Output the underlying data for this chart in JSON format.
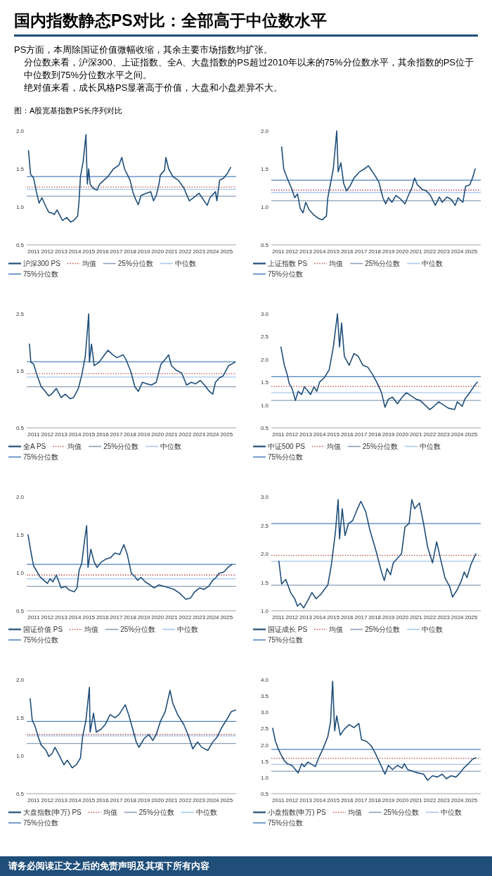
{
  "chart_data": [
    {
      "type": "other",
      "title": "国内指数静态PS对比：全部高于中位数水平",
      "annotations": [
        "PS方面，本周除国证价值微幅收缩，其余主要市场指数均扩张。",
        "分位数来看，沪深300、上证指数、全A、大盘指数的PS超过2010年以来的75%分位数水平，其余指数的PS位于中位数到75%分位数水平之间。",
        "绝对值来看，成长风格PS显著高于价值，大盘和小盘差异不大。",
        "图：A股宽基指数PS长序列对比",
        "请务必阅读正文之后的免责声明及其项下所有内容"
      ]
    },
    {
      "type": "line",
      "legend": "bottom",
      "xlim": [
        2010.5,
        2025.7
      ],
      "xticks": [
        2011,
        2012,
        2013,
        2014,
        2015,
        2016,
        2017,
        2018,
        2019,
        2020,
        2021,
        2022,
        2023,
        2024,
        2025
      ],
      "ylim": [
        0.5,
        2
      ],
      "yticks": [
        0.5,
        {
          "value": 1,
          "label": "1.0"
        },
        1.5,
        {
          "value": 2,
          "label": "2.0"
        }
      ],
      "x": [
        2010.63,
        2010.78,
        2011.0,
        2011.2,
        2011.4,
        2011.6,
        2011.9,
        2012.1,
        2012.3,
        2012.5,
        2012.7,
        2013.1,
        2013.4,
        2013.7,
        2013.9,
        2014.2,
        2014.3,
        2014.4,
        2014.6,
        2014.8,
        2014.85,
        2014.9,
        2015.0,
        2015.1,
        2015.3,
        2015.6,
        2015.8,
        2016.1,
        2016.4,
        2016.8,
        2017.2,
        2017.4,
        2017.6,
        2018.0,
        2018.2,
        2018.4,
        2018.6,
        2018.8,
        2019.2,
        2019.5,
        2019.7,
        2019.9,
        2020.1,
        2020.2,
        2020.5,
        2020.6,
        2020.8,
        2021.1,
        2021.5,
        2021.9,
        2022.3,
        2022.6,
        2023.0,
        2023.3,
        2023.6,
        2023.8,
        2024.2,
        2024.3,
        2024.5,
        2024.8,
        2025.1,
        2025.3
      ],
      "series": [
        {
          "name": "沪深300 PS",
          "color": "#1f4e79",
          "values": [
            1.74,
            1.43,
            1.38,
            1.2,
            1.05,
            1.12,
            1.0,
            0.93,
            0.92,
            0.9,
            0.96,
            0.82,
            0.86,
            0.8,
            0.82,
            0.88,
            1.08,
            1.4,
            1.6,
            1.95,
            1.6,
            1.3,
            1.5,
            1.3,
            1.25,
            1.22,
            1.3,
            1.35,
            1.4,
            1.5,
            1.55,
            1.65,
            1.5,
            1.35,
            1.2,
            1.1,
            1.03,
            1.15,
            1.18,
            1.2,
            1.08,
            1.15,
            1.3,
            1.42,
            1.48,
            1.65,
            1.5,
            1.4,
            1.35,
            1.25,
            1.08,
            1.12,
            1.18,
            1.1,
            1.02,
            1.12,
            1.2,
            1.08,
            1.35,
            1.38,
            1.45,
            1.52
          ]
        }
      ],
      "ref_lines": [
        {
          "axis": "y",
          "value": 1.26,
          "label": "均值",
          "color": "#c0504d",
          "line_style": "dotted"
        },
        {
          "axis": "y",
          "value": 1.14,
          "label": "25%分位数",
          "color": "#8c9fb8",
          "line_style": "solid"
        },
        {
          "axis": "y",
          "value": 1.23,
          "label": "中位数",
          "color": "#a6c8ec",
          "line_style": "solid"
        },
        {
          "axis": "y",
          "value": 1.4,
          "label": "75%分位数",
          "color": "#4f81bd",
          "line_style": "solid"
        }
      ]
    },
    {
      "type": "line",
      "legend": "bottom",
      "xlim": [
        2010.5,
        2025.7
      ],
      "xticks": [
        2011,
        2012,
        2013,
        2014,
        2015,
        2016,
        2017,
        2018,
        2019,
        2020,
        2021,
        2022,
        2023,
        2024,
        2025
      ],
      "ylim": [
        0.5,
        2
      ],
      "yticks": [
        0.5,
        {
          "value": 1,
          "label": "1.0"
        },
        1.5,
        {
          "value": 2,
          "label": "2.0"
        }
      ],
      "x": [
        2011.25,
        2011.4,
        2011.65,
        2012.0,
        2012.2,
        2012.4,
        2012.6,
        2012.8,
        2013.0,
        2013.25,
        2013.55,
        2013.9,
        2014.2,
        2014.5,
        2014.6,
        2014.8,
        2015.0,
        2015.25,
        2015.35,
        2015.55,
        2015.75,
        2015.95,
        2016.2,
        2016.5,
        2016.9,
        2017.25,
        2017.55,
        2018.0,
        2018.3,
        2018.6,
        2018.8,
        2019.0,
        2019.25,
        2019.55,
        2019.9,
        2020.2,
        2020.4,
        2020.7,
        2020.9,
        2021.1,
        2021.45,
        2021.75,
        2022.05,
        2022.4,
        2022.7,
        2022.9,
        2023.25,
        2023.55,
        2023.85,
        2024.05,
        2024.4,
        2024.6,
        2024.9,
        2025.1,
        2025.3
      ],
      "series": [
        {
          "name": "上证指数 PS",
          "color": "#1f4e79",
          "values": [
            1.79,
            1.5,
            1.38,
            1.23,
            1.12,
            1.17,
            0.98,
            0.92,
            1.06,
            0.96,
            0.9,
            0.85,
            0.83,
            0.88,
            1.12,
            1.31,
            1.5,
            2.0,
            1.46,
            1.58,
            1.31,
            1.21,
            1.27,
            1.38,
            1.46,
            1.5,
            1.54,
            1.42,
            1.33,
            1.12,
            1.04,
            1.12,
            1.06,
            1.15,
            1.1,
            1.04,
            1.13,
            1.25,
            1.38,
            1.29,
            1.23,
            1.21,
            1.15,
            1.02,
            1.13,
            1.06,
            1.13,
            1.1,
            1.02,
            1.12,
            1.06,
            1.27,
            1.29,
            1.38,
            1.5
          ]
        }
      ],
      "ref_lines": [
        {
          "axis": "y",
          "value": 1.22,
          "label": "均值",
          "color": "#c0504d",
          "line_style": "dotted"
        },
        {
          "axis": "y",
          "value": 1.08,
          "label": "25%分位数",
          "color": "#8c9fb8",
          "line_style": "solid"
        },
        {
          "axis": "y",
          "value": 1.19,
          "label": "中位数",
          "color": "#a6c8ec",
          "line_style": "solid"
        },
        {
          "axis": "y",
          "value": 1.35,
          "label": "75%分位数",
          "color": "#4f81bd",
          "line_style": "solid"
        }
      ]
    },
    {
      "type": "line",
      "legend": "bottom",
      "xlim": [
        2010.5,
        2025.7
      ],
      "xticks": [
        2011,
        2012,
        2013,
        2014,
        2015,
        2016,
        2017,
        2018,
        2019,
        2020,
        2021,
        2022,
        2023,
        2024,
        2025
      ],
      "ylim": [
        0.5,
        2.5
      ],
      "yticks": [
        0.5,
        1.5,
        2.5
      ],
      "x": [
        2010.7,
        2010.8,
        2011.0,
        2011.2,
        2011.55,
        2011.75,
        2012.1,
        2012.3,
        2012.65,
        2013.0,
        2013.3,
        2013.65,
        2013.9,
        2014.25,
        2014.5,
        2014.75,
        2015.0,
        2015.05,
        2015.2,
        2015.4,
        2015.75,
        2016.05,
        2016.4,
        2016.75,
        2017.05,
        2017.5,
        2017.7,
        2018.05,
        2018.35,
        2018.6,
        2018.9,
        2019.25,
        2019.55,
        2019.9,
        2020.1,
        2020.25,
        2020.55,
        2020.8,
        2021.0,
        2021.35,
        2021.75,
        2022.1,
        2022.45,
        2022.75,
        2023.1,
        2023.4,
        2023.75,
        2024.0,
        2024.2,
        2024.5,
        2024.75,
        2025.15,
        2025.6
      ],
      "series": [
        {
          "name": "全A PS",
          "color": "#1f4e79",
          "values": [
            1.97,
            1.65,
            1.62,
            1.46,
            1.22,
            1.17,
            1.06,
            1.09,
            1.19,
            1.03,
            1.09,
            1.01,
            1.03,
            1.19,
            1.43,
            1.75,
            2.5,
            1.65,
            1.97,
            1.59,
            1.65,
            1.75,
            1.86,
            1.78,
            1.73,
            1.78,
            1.7,
            1.49,
            1.22,
            1.14,
            1.3,
            1.27,
            1.25,
            1.3,
            1.49,
            1.62,
            1.7,
            1.78,
            1.59,
            1.51,
            1.46,
            1.25,
            1.3,
            1.27,
            1.33,
            1.25,
            1.14,
            1.09,
            1.3,
            1.38,
            1.41,
            1.59,
            1.65
          ]
        }
      ],
      "ref_lines": [
        {
          "axis": "y",
          "value": 1.45,
          "label": "均值",
          "color": "#c0504d",
          "line_style": "dotted"
        },
        {
          "axis": "y",
          "value": 1.22,
          "label": "25%分位数",
          "color": "#8c9fb8",
          "line_style": "solid"
        },
        {
          "axis": "y",
          "value": 1.39,
          "label": "中位数",
          "color": "#a6c8ec",
          "line_style": "solid"
        },
        {
          "axis": "y",
          "value": 1.66,
          "label": "75%分位数",
          "color": "#4f81bd",
          "line_style": "solid"
        }
      ]
    },
    {
      "type": "line",
      "legend": "bottom",
      "xlim": [
        2010.5,
        2025.7
      ],
      "xticks": [
        2011,
        2012,
        2013,
        2014,
        2015,
        2016,
        2017,
        2018,
        2019,
        2020,
        2021,
        2022,
        2023,
        2024,
        2025
      ],
      "ylim": [
        0.5,
        3
      ],
      "yticks": [
        0.5,
        {
          "value": 1,
          "label": "1.0"
        },
        1.5,
        {
          "value": 2,
          "label": "2.0"
        },
        2.5,
        {
          "value": 3,
          "label": "3.0"
        }
      ],
      "x": [
        2011.2,
        2011.45,
        2011.65,
        2011.8,
        2012.0,
        2012.25,
        2012.45,
        2012.7,
        2012.9,
        2013.1,
        2013.35,
        2013.6,
        2013.8,
        2014.0,
        2014.35,
        2014.7,
        2015.0,
        2015.3,
        2015.45,
        2015.6,
        2015.8,
        2016.15,
        2016.5,
        2016.8,
        2017.15,
        2017.5,
        2017.85,
        2018.2,
        2018.5,
        2018.75,
        2019.0,
        2019.3,
        2019.65,
        2020.0,
        2020.3,
        2020.65,
        2021.0,
        2021.3,
        2021.65,
        2022.0,
        2022.3,
        2022.65,
        2023.0,
        2023.35,
        2023.8,
        2024.0,
        2024.35,
        2024.55,
        2024.9,
        2025.25,
        2025.45
      ],
      "series": [
        {
          "name": "中证500 PS",
          "color": "#1f4e79",
          "values": [
            2.27,
            1.87,
            1.67,
            1.47,
            1.37,
            1.1,
            1.3,
            1.23,
            1.4,
            1.33,
            1.23,
            1.4,
            1.3,
            1.5,
            1.6,
            1.77,
            2.27,
            3.0,
            2.27,
            2.8,
            2.07,
            1.87,
            2.13,
            2.07,
            1.87,
            1.83,
            1.67,
            1.47,
            1.27,
            0.95,
            1.13,
            1.17,
            1.03,
            1.17,
            1.27,
            1.2,
            1.13,
            1.1,
            1.0,
            0.9,
            0.97,
            1.07,
            1.0,
            0.93,
            0.9,
            1.07,
            0.97,
            1.13,
            1.27,
            1.43,
            1.5
          ]
        }
      ],
      "ref_lines": [
        {
          "axis": "y",
          "value": 1.41,
          "label": "均值",
          "color": "#c0504d",
          "line_style": "dotted"
        },
        {
          "axis": "y",
          "value": 1.1,
          "label": "25%分位数",
          "color": "#8c9fb8",
          "line_style": "solid"
        },
        {
          "axis": "y",
          "value": 1.27,
          "label": "中位数",
          "color": "#a6c8ec",
          "line_style": "solid"
        },
        {
          "axis": "y",
          "value": 1.62,
          "label": "75%分位数",
          "color": "#4f81bd",
          "line_style": "solid"
        }
      ]
    },
    {
      "type": "line",
      "legend": "bottom",
      "xlim": [
        2010.5,
        2025.7
      ],
      "xticks": [
        2011,
        2012,
        2013,
        2014,
        2015,
        2016,
        2017,
        2018,
        2019,
        2020,
        2021,
        2022,
        2023,
        2024,
        2025
      ],
      "ylim": [
        0.5,
        2
      ],
      "yticks": [
        0.5,
        {
          "value": 1,
          "label": "1.0"
        },
        1.5,
        {
          "value": 2,
          "label": "2.0"
        }
      ],
      "x": [
        2010.6,
        2010.8,
        2011.0,
        2011.2,
        2011.45,
        2011.75,
        2012.0,
        2012.2,
        2012.4,
        2012.65,
        2013.0,
        2013.3,
        2013.6,
        2013.95,
        2014.15,
        2014.3,
        2014.5,
        2014.7,
        2014.85,
        2014.95,
        2015.15,
        2015.4,
        2015.6,
        2015.9,
        2016.25,
        2016.6,
        2016.9,
        2017.25,
        2017.55,
        2017.8,
        2018.1,
        2018.35,
        2018.55,
        2018.8,
        2019.1,
        2019.45,
        2019.75,
        2020.1,
        2020.5,
        2020.85,
        2021.2,
        2021.6,
        2022.05,
        2022.4,
        2022.7,
        2023.05,
        2023.35,
        2023.7,
        2024.0,
        2024.25,
        2024.45,
        2024.8,
        2025.1,
        2025.4
      ],
      "series": [
        {
          "name": "国证价值 PS",
          "color": "#1f4e79",
          "values": [
            1.5,
            1.28,
            1.09,
            1.03,
            0.95,
            0.9,
            0.86,
            0.92,
            0.88,
            0.97,
            0.8,
            0.82,
            0.77,
            0.75,
            0.8,
            1.03,
            1.13,
            1.43,
            1.62,
            1.07,
            1.31,
            1.14,
            1.07,
            1.14,
            1.18,
            1.2,
            1.26,
            1.24,
            1.37,
            1.24,
            0.99,
            0.95,
            0.9,
            0.94,
            0.88,
            0.84,
            0.8,
            0.84,
            0.82,
            0.8,
            0.78,
            0.73,
            0.65,
            0.67,
            0.75,
            0.8,
            0.78,
            0.82,
            0.9,
            0.94,
            0.99,
            1.01,
            1.07,
            1.11
          ]
        }
      ],
      "ref_lines": [
        {
          "axis": "y",
          "value": 0.97,
          "label": "均值",
          "color": "#c0504d",
          "line_style": "dotted"
        },
        {
          "axis": "y",
          "value": 0.82,
          "label": "25%分位数",
          "color": "#8c9fb8",
          "line_style": "solid"
        },
        {
          "axis": "y",
          "value": 0.92,
          "label": "中位数",
          "color": "#a6c8ec",
          "line_style": "solid"
        },
        {
          "axis": "y",
          "value": 1.11,
          "label": "75%分位数",
          "color": "#4f81bd",
          "line_style": "solid"
        }
      ]
    },
    {
      "type": "line",
      "legend": "bottom",
      "xlim": [
        2010.5,
        2025.7
      ],
      "xticks": [
        2011,
        2012,
        2013,
        2014,
        2015,
        2016,
        2017,
        2018,
        2019,
        2020,
        2021,
        2022,
        2023,
        2024,
        2025
      ],
      "ylim": [
        1,
        3
      ],
      "yticks": [
        {
          "value": 1,
          "label": "1.0"
        },
        1.5,
        {
          "value": 2,
          "label": "2.0"
        },
        2.5,
        {
          "value": 3,
          "label": "3.0"
        }
      ],
      "x": [
        2011.05,
        2011.25,
        2011.55,
        2011.9,
        2012.2,
        2012.4,
        2012.6,
        2012.85,
        2013.15,
        2013.45,
        2013.75,
        2014.1,
        2014.4,
        2014.6,
        2014.85,
        2015.15,
        2015.35,
        2015.45,
        2015.65,
        2015.85,
        2016.1,
        2016.4,
        2016.7,
        2017.0,
        2017.35,
        2017.65,
        2018.1,
        2018.5,
        2018.7,
        2018.9,
        2019.15,
        2019.35,
        2019.65,
        2019.95,
        2020.2,
        2020.5,
        2020.7,
        2020.9,
        2021.25,
        2021.55,
        2021.85,
        2022.2,
        2022.5,
        2022.8,
        2023.1,
        2023.45,
        2023.65,
        2024.0,
        2024.3,
        2024.5,
        2024.7,
        2025.0,
        2025.35
      ],
      "series": [
        {
          "name": "国证成长 PS",
          "color": "#1f4e79",
          "values": [
            1.87,
            1.47,
            1.55,
            1.32,
            1.21,
            1.08,
            1.13,
            1.05,
            1.18,
            1.32,
            1.21,
            1.29,
            1.39,
            1.45,
            1.79,
            2.37,
            2.95,
            2.26,
            2.79,
            2.32,
            2.53,
            2.58,
            2.76,
            2.92,
            2.74,
            2.42,
            2.05,
            1.68,
            1.53,
            1.74,
            1.63,
            1.84,
            1.92,
            2.0,
            2.47,
            2.53,
            2.95,
            2.79,
            2.89,
            2.53,
            2.11,
            1.84,
            2.21,
            1.89,
            1.58,
            1.42,
            1.24,
            1.37,
            1.53,
            1.68,
            1.58,
            1.82,
            2.0
          ]
        }
      ],
      "ref_lines": [
        {
          "axis": "y",
          "value": 1.97,
          "label": "均值",
          "color": "#c0504d",
          "line_style": "dotted"
        },
        {
          "axis": "y",
          "value": 1.45,
          "label": "25%分位数",
          "color": "#8c9fb8",
          "line_style": "solid"
        },
        {
          "axis": "y",
          "value": 1.87,
          "label": "中位数",
          "color": "#a6c8ec",
          "line_style": "solid"
        },
        {
          "axis": "y",
          "value": 2.53,
          "label": "75%分位数",
          "color": "#4f81bd",
          "line_style": "solid"
        }
      ]
    },
    {
      "type": "line",
      "legend": "bottom",
      "xlim": [
        2010.5,
        2025.7
      ],
      "xticks": [
        2011,
        2012,
        2013,
        2014,
        2015,
        2016,
        2017,
        2018,
        2019,
        2020,
        2021,
        2022,
        2023,
        2024,
        2025
      ],
      "ylim": [
        0.5,
        2
      ],
      "yticks": [
        0.5,
        {
          "value": 1,
          "label": "1.0"
        },
        1.5,
        {
          "value": 2,
          "label": "2.0"
        }
      ],
      "x": [
        2010.75,
        2010.9,
        2011.1,
        2011.35,
        2011.55,
        2011.9,
        2012.1,
        2012.35,
        2012.55,
        2012.9,
        2013.2,
        2013.45,
        2013.8,
        2014.1,
        2014.4,
        2014.55,
        2014.8,
        2015.05,
        2015.1,
        2015.35,
        2015.55,
        2015.9,
        2016.2,
        2016.55,
        2016.9,
        2017.2,
        2017.65,
        2017.9,
        2018.1,
        2018.45,
        2018.65,
        2019.0,
        2019.35,
        2019.65,
        2019.9,
        2020.2,
        2020.55,
        2020.9,
        2021.1,
        2021.45,
        2021.9,
        2022.2,
        2022.55,
        2022.9,
        2023.2,
        2023.65,
        2024.0,
        2024.3,
        2024.65,
        2025.0,
        2025.35,
        2025.65
      ],
      "series": [
        {
          "name": "大盘指数(申万) PS",
          "color": "#1f4e79",
          "values": [
            1.75,
            1.47,
            1.39,
            1.24,
            1.14,
            1.07,
            0.99,
            1.03,
            1.11,
            0.99,
            0.88,
            0.94,
            0.84,
            0.88,
            0.97,
            1.24,
            1.47,
            1.9,
            1.31,
            1.56,
            1.31,
            1.35,
            1.41,
            1.54,
            1.5,
            1.54,
            1.67,
            1.54,
            1.41,
            1.18,
            1.11,
            1.22,
            1.28,
            1.2,
            1.28,
            1.45,
            1.58,
            1.86,
            1.69,
            1.54,
            1.41,
            1.28,
            1.09,
            1.18,
            1.11,
            1.07,
            1.18,
            1.24,
            1.37,
            1.47,
            1.58,
            1.6
          ]
        }
      ],
      "ref_lines": [
        {
          "axis": "y",
          "value": 1.28,
          "label": "均值",
          "color": "#c0504d",
          "line_style": "dotted"
        },
        {
          "axis": "y",
          "value": 1.16,
          "label": "25%分位数",
          "color": "#8c9fb8",
          "line_style": "solid"
        },
        {
          "axis": "y",
          "value": 1.26,
          "label": "中位数",
          "color": "#a6c8ec",
          "line_style": "solid"
        },
        {
          "axis": "y",
          "value": 1.45,
          "label": "75%分位数",
          "color": "#4f81bd",
          "line_style": "solid"
        }
      ]
    },
    {
      "type": "line",
      "legend": "bottom",
      "xlim": [
        2010.5,
        2025.7
      ],
      "xticks": [
        2011,
        2012,
        2013,
        2014,
        2015,
        2016,
        2017,
        2018,
        2019,
        2020,
        2021,
        2022,
        2023,
        2024,
        2025
      ],
      "ylim": [
        0.5,
        4
      ],
      "yticks": [
        0.5,
        {
          "value": 1,
          "label": "1.0"
        },
        1.5,
        {
          "value": 2,
          "label": "2.0"
        },
        2.5,
        {
          "value": 3,
          "label": "3.0"
        },
        3.5,
        {
          "value": 4,
          "label": "4.0"
        }
      ],
      "x": [
        2010.6,
        2010.8,
        2011.0,
        2011.2,
        2011.45,
        2011.65,
        2012.0,
        2012.25,
        2012.45,
        2012.7,
        2012.9,
        2013.15,
        2013.35,
        2013.7,
        2013.9,
        2014.25,
        2014.6,
        2014.8,
        2014.95,
        2015.1,
        2015.25,
        2015.5,
        2015.8,
        2016.15,
        2016.5,
        2016.85,
        2017.05,
        2017.4,
        2017.75,
        2018.05,
        2018.4,
        2018.75,
        2019.0,
        2019.3,
        2019.65,
        2020.0,
        2020.15,
        2020.4,
        2020.75,
        2021.1,
        2021.55,
        2021.85,
        2022.2,
        2022.55,
        2022.9,
        2023.2,
        2023.55,
        2023.9,
        2024.2,
        2024.45,
        2024.8,
        2025.1,
        2025.35
      ],
      "series": [
        {
          "name": "小盘指数(申万) PS",
          "color": "#1f4e79",
          "values": [
            2.51,
            2.11,
            1.88,
            1.7,
            1.51,
            1.42,
            1.37,
            1.24,
            1.14,
            1.42,
            1.33,
            1.47,
            1.42,
            1.33,
            1.56,
            1.88,
            2.25,
            2.71,
            3.95,
            2.43,
            2.89,
            2.3,
            2.48,
            2.62,
            2.53,
            2.66,
            2.16,
            2.11,
            1.97,
            1.74,
            1.42,
            1.1,
            1.37,
            1.24,
            1.37,
            1.28,
            1.42,
            1.24,
            1.19,
            1.14,
            1.1,
            0.91,
            1.05,
            1.01,
            1.1,
            0.96,
            1.05,
            1.01,
            1.14,
            1.28,
            1.42,
            1.56,
            1.6
          ]
        }
      ],
      "ref_lines": [
        {
          "axis": "y",
          "value": 1.59,
          "label": "均值",
          "color": "#c0504d",
          "line_style": "dotted"
        },
        {
          "axis": "y",
          "value": 1.19,
          "label": "25%分位数",
          "color": "#8c9fb8",
          "line_style": "solid"
        },
        {
          "axis": "y",
          "value": 1.4,
          "label": "中位数",
          "color": "#a6c8ec",
          "line_style": "solid"
        },
        {
          "axis": "y",
          "value": 1.86,
          "label": "75%分位数",
          "color": "#4f81bd",
          "line_style": "solid"
        }
      ]
    }
  ]
}
